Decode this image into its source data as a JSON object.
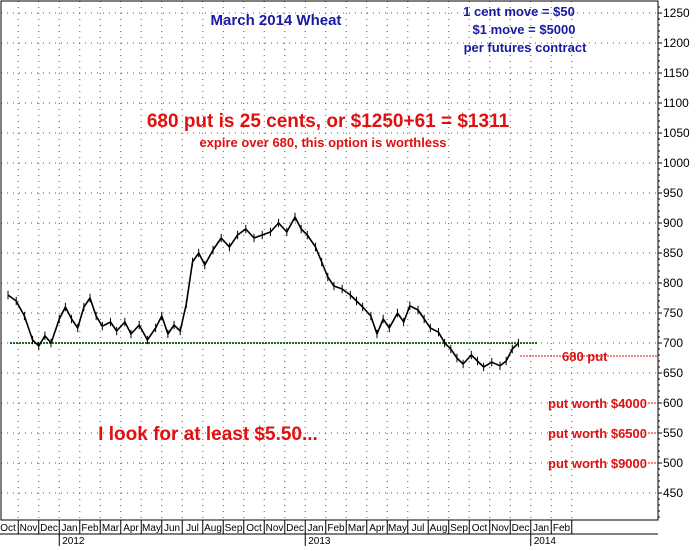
{
  "chart_data": {
    "type": "line",
    "title": "March 2014 Wheat",
    "y_axis": {
      "side": "right",
      "ylim": [
        405,
        1270
      ],
      "ticks": [
        450,
        500,
        550,
        600,
        650,
        700,
        750,
        800,
        850,
        900,
        950,
        1000,
        1050,
        1100,
        1150,
        1200,
        1250
      ],
      "grid": true
    },
    "x_axis": {
      "months": [
        "Oct",
        "Nov",
        "Dec",
        "Jan",
        "Feb",
        "Mar",
        "Apr",
        "May",
        "Jun",
        "Jul",
        "Aug",
        "Sep",
        "Oct",
        "Nov",
        "Dec",
        "Jan",
        "Feb",
        "Mar",
        "Apr",
        "May",
        "Jul",
        "Aug",
        "Sep",
        "Oct",
        "Nov",
        "Dec",
        "Jan",
        "Feb"
      ],
      "years": [
        {
          "label": "2012",
          "start_index": 3
        },
        {
          "label": "2013",
          "start_index": 15
        },
        {
          "label": "2014",
          "start_index": 26
        }
      ],
      "grid": true
    },
    "series": [
      {
        "color": "#000000",
        "points": [
          [
            0,
            780
          ],
          [
            0.4,
            770
          ],
          [
            0.8,
            745
          ],
          [
            1.2,
            705
          ],
          [
            1.5,
            695
          ],
          [
            1.8,
            712
          ],
          [
            2.1,
            700
          ],
          [
            2.5,
            740
          ],
          [
            2.8,
            760
          ],
          [
            3.1,
            740
          ],
          [
            3.4,
            725
          ],
          [
            3.7,
            760
          ],
          [
            4.0,
            775
          ],
          [
            4.3,
            745
          ],
          [
            4.6,
            728
          ],
          [
            5.0,
            735
          ],
          [
            5.3,
            720
          ],
          [
            5.7,
            735
          ],
          [
            6.0,
            715
          ],
          [
            6.4,
            730
          ],
          [
            6.8,
            705
          ],
          [
            7.2,
            725
          ],
          [
            7.5,
            745
          ],
          [
            7.8,
            715
          ],
          [
            8.1,
            730
          ],
          [
            8.4,
            720
          ],
          [
            8.7,
            765
          ],
          [
            9.0,
            835
          ],
          [
            9.3,
            850
          ],
          [
            9.6,
            830
          ],
          [
            10.0,
            855
          ],
          [
            10.4,
            875
          ],
          [
            10.8,
            860
          ],
          [
            11.2,
            880
          ],
          [
            11.6,
            890
          ],
          [
            12.0,
            875
          ],
          [
            12.4,
            880
          ],
          [
            12.8,
            885
          ],
          [
            13.2,
            900
          ],
          [
            13.6,
            885
          ],
          [
            14.0,
            910
          ],
          [
            14.3,
            890
          ],
          [
            14.6,
            880
          ],
          [
            15.0,
            860
          ],
          [
            15.3,
            835
          ],
          [
            15.6,
            810
          ],
          [
            15.9,
            795
          ],
          [
            16.3,
            790
          ],
          [
            16.7,
            780
          ],
          [
            17.0,
            770
          ],
          [
            17.3,
            760
          ],
          [
            17.7,
            745
          ],
          [
            18.0,
            715
          ],
          [
            18.3,
            740
          ],
          [
            18.6,
            725
          ],
          [
            19.0,
            750
          ],
          [
            19.3,
            735
          ],
          [
            19.6,
            762
          ],
          [
            20.0,
            755
          ],
          [
            20.3,
            740
          ],
          [
            20.6,
            725
          ],
          [
            21.0,
            718
          ],
          [
            21.3,
            700
          ],
          [
            21.6,
            690
          ],
          [
            21.9,
            675
          ],
          [
            22.2,
            665
          ],
          [
            22.6,
            680
          ],
          [
            22.9,
            670
          ],
          [
            23.2,
            660
          ],
          [
            23.6,
            668
          ],
          [
            24.0,
            662
          ],
          [
            24.3,
            670
          ],
          [
            24.6,
            690
          ],
          [
            24.9,
            700
          ]
        ]
      }
    ],
    "reference_line": {
      "y": 700,
      "color": "#1a6b1a",
      "style": "dotted"
    },
    "annotations": {
      "contract_note": [
        "1 cent move = $50",
        "$1 move = $5000",
        "per futures contract"
      ],
      "headline": "680 put is 25 cents, or $1250+61 = $1311",
      "subline": "expire over 680, this option is worthless",
      "put_label": "680 put",
      "target": "I look for at least $5.50...",
      "put_worth": [
        {
          "label": "put worth $4000",
          "y": 600
        },
        {
          "label": "put worth $6500",
          "y": 550
        },
        {
          "label": "put worth $9000",
          "y": 500
        }
      ]
    },
    "colors": {
      "title": "#1a1aa0",
      "annotation_red": "#e01010",
      "price": "#000000"
    }
  }
}
